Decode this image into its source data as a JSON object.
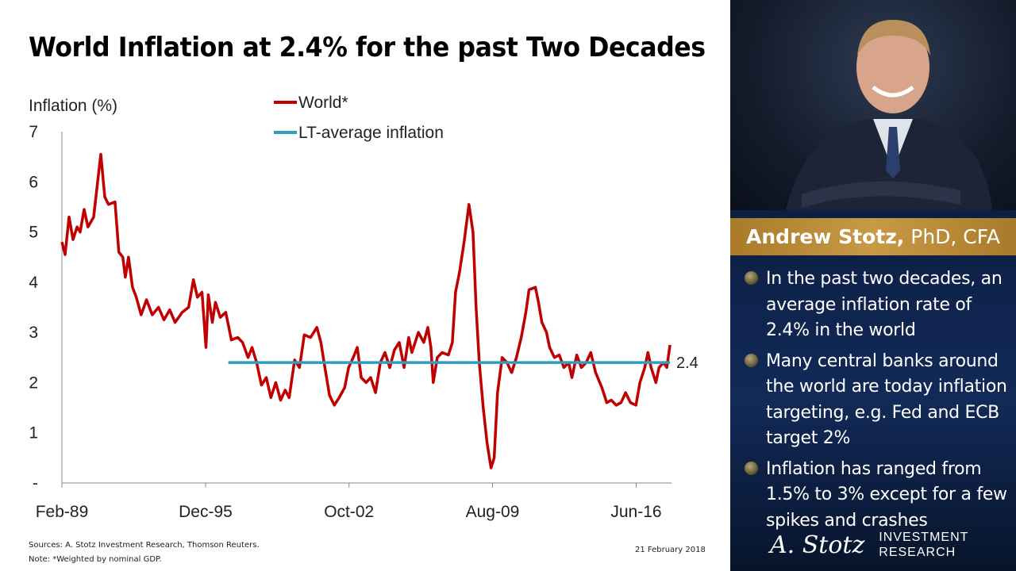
{
  "title": "World Inflation at 2.4% for the past Two Decades",
  "sources": "Sources: A. Stotz Investment Research, Thomson Reuters.",
  "note": "Note: *Weighted by nominal GDP.",
  "date": "21 February 2018",
  "panel": {
    "name": "Andrew Stotz,",
    "credentials": " PhD, CFA",
    "bullets": [
      "In the past two decades, an average inflation rate of 2.4% in the world",
      "Many central banks around the world are today inflation targeting, e.g. Fed and ECB target 2%",
      "Inflation has ranged from 1.5% to 3% except for a few spikes and crashes"
    ],
    "logo_signature": "A. Stotz",
    "logo_line1": "INVESTMENT",
    "logo_line2": "RESEARCH"
  },
  "colors": {
    "world": "#c00000",
    "average": "#2e9ec0",
    "gold": "#b8893a",
    "navy": "#0d2148"
  },
  "chart_data": {
    "type": "line",
    "ylabel": "Inflation (%)",
    "ylim": [
      0,
      7
    ],
    "yticks": [
      {
        "v": 0,
        "label": "-"
      },
      {
        "v": 1,
        "label": "1"
      },
      {
        "v": 2,
        "label": "2"
      },
      {
        "v": 3,
        "label": "3"
      },
      {
        "v": 4,
        "label": "4"
      },
      {
        "v": 5,
        "label": "5"
      },
      {
        "v": 6,
        "label": "6"
      },
      {
        "v": 7,
        "label": "7"
      }
    ],
    "xlim": [
      1989.08,
      2018.1
    ],
    "xticks": [
      {
        "v": 1989.08,
        "label": "Feb-89"
      },
      {
        "v": 1995.92,
        "label": "Dec-95"
      },
      {
        "v": 2002.75,
        "label": "Oct-02"
      },
      {
        "v": 2009.58,
        "label": "Aug-09"
      },
      {
        "v": 2016.42,
        "label": "Jun-16"
      }
    ],
    "legend": "top-center",
    "series": [
      {
        "name": "World*",
        "x": [
          1989.08,
          1989.23,
          1989.42,
          1989.61,
          1989.8,
          1989.95,
          1990.14,
          1990.32,
          1990.59,
          1990.78,
          1990.93,
          1991.12,
          1991.3,
          1991.61,
          1991.79,
          1991.98,
          1992.1,
          1992.25,
          1992.44,
          1992.62,
          1992.85,
          1993.11,
          1993.38,
          1993.68,
          1993.94,
          1994.21,
          1994.47,
          1994.81,
          1995.11,
          1995.34,
          1995.53,
          1995.75,
          1995.94,
          1996.05,
          1996.24,
          1996.39,
          1996.62,
          1996.88,
          1997.15,
          1997.45,
          1997.68,
          1997.94,
          1998.13,
          1998.35,
          1998.58,
          1998.81,
          1999.03,
          1999.26,
          1999.49,
          1999.71,
          1999.9,
          2000.16,
          2000.39,
          2000.62,
          2000.92,
          2001.22,
          2001.41,
          2001.6,
          2001.82,
          2002.05,
          2002.28,
          2002.54,
          2002.73,
          2002.95,
          2003.14,
          2003.33,
          2003.56,
          2003.78,
          2004.01,
          2004.24,
          2004.46,
          2004.69,
          2004.91,
          2005.14,
          2005.37,
          2005.59,
          2005.74,
          2006.05,
          2006.31,
          2006.5,
          2006.65,
          2006.76,
          2006.95,
          2007.18,
          2007.48,
          2007.67,
          2007.82,
          2008.01,
          2008.23,
          2008.46,
          2008.65,
          2008.8,
          2008.95,
          2009.14,
          2009.32,
          2009.51,
          2009.66,
          2009.82,
          2010.04,
          2010.27,
          2010.49,
          2010.72,
          2010.95,
          2011.17,
          2011.32,
          2011.62,
          2011.77,
          2011.93,
          2012.15,
          2012.3,
          2012.53,
          2012.76,
          2012.98,
          2013.21,
          2013.36,
          2013.59,
          2013.81,
          2014.04,
          2014.26,
          2014.49,
          2014.79,
          2015.02,
          2015.24,
          2015.47,
          2015.7,
          2015.92,
          2016.15,
          2016.41,
          2016.6,
          2016.83,
          2016.98,
          2017.13,
          2017.36,
          2017.51,
          2017.73,
          2017.88,
          2018.03
        ],
        "values": [
          4.8,
          4.55,
          5.3,
          4.85,
          5.1,
          5.0,
          5.45,
          5.1,
          5.3,
          6.0,
          6.55,
          5.7,
          5.55,
          5.6,
          4.6,
          4.5,
          4.1,
          4.5,
          3.9,
          3.7,
          3.35,
          3.65,
          3.35,
          3.5,
          3.25,
          3.45,
          3.2,
          3.4,
          3.5,
          4.05,
          3.7,
          3.8,
          2.7,
          3.75,
          3.2,
          3.6,
          3.3,
          3.4,
          2.85,
          2.9,
          2.8,
          2.5,
          2.7,
          2.4,
          1.95,
          2.1,
          1.7,
          2.0,
          1.65,
          1.85,
          1.7,
          2.45,
          2.3,
          2.95,
          2.9,
          3.1,
          2.8,
          2.3,
          1.75,
          1.55,
          1.7,
          1.9,
          2.3,
          2.5,
          2.7,
          2.1,
          2.0,
          2.1,
          1.8,
          2.4,
          2.6,
          2.3,
          2.65,
          2.8,
          2.3,
          2.9,
          2.6,
          3.0,
          2.8,
          3.1,
          2.7,
          2.0,
          2.5,
          2.6,
          2.55,
          2.8,
          3.8,
          4.2,
          4.8,
          5.55,
          5.0,
          3.5,
          2.4,
          1.5,
          0.8,
          0.3,
          0.5,
          1.8,
          2.5,
          2.4,
          2.2,
          2.5,
          2.9,
          3.4,
          3.85,
          3.9,
          3.6,
          3.2,
          3.0,
          2.7,
          2.5,
          2.55,
          2.3,
          2.4,
          2.1,
          2.55,
          2.3,
          2.4,
          2.6,
          2.2,
          1.9,
          1.6,
          1.65,
          1.55,
          1.6,
          1.8,
          1.6,
          1.55,
          2.0,
          2.3,
          2.6,
          2.3,
          2.0,
          2.3,
          2.4,
          2.3,
          2.75
        ]
      },
      {
        "name": "LT-average inflation",
        "x": [
          1997.0,
          2018.03
        ],
        "values": [
          2.4,
          2.4
        ],
        "end_label": "2.4"
      }
    ]
  }
}
